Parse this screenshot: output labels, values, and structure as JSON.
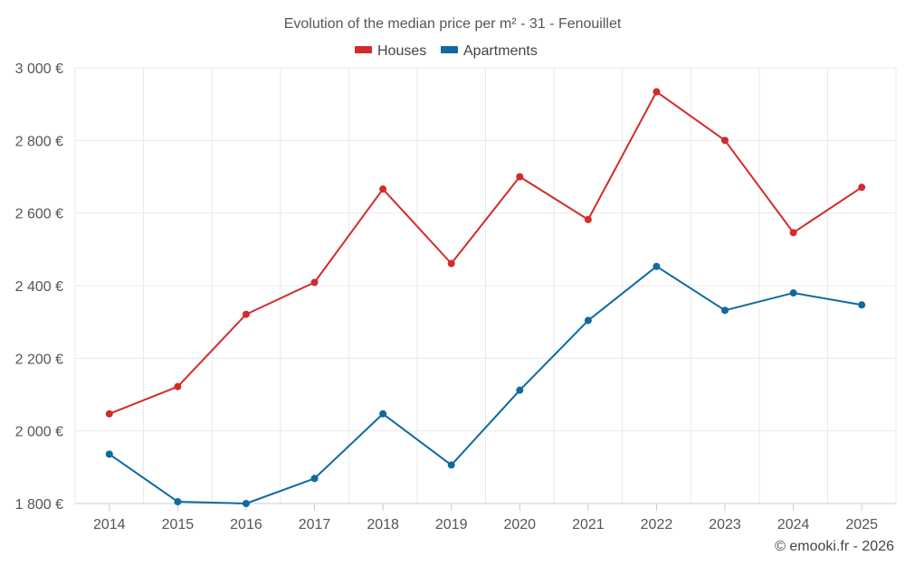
{
  "chart_data": {
    "type": "line",
    "title": "Evolution of the median price per m² - 31 - Fenouillet",
    "categories": [
      "2014",
      "2015",
      "2016",
      "2017",
      "2018",
      "2019",
      "2020",
      "2021",
      "2022",
      "2023",
      "2024",
      "2025"
    ],
    "series": [
      {
        "name": "Houses",
        "color": "#d42a2a",
        "values": [
          2047,
          2122,
          2321,
          2409,
          2666,
          2461,
          2700,
          2582,
          2934,
          2800,
          2546,
          2671
        ]
      },
      {
        "name": "Apartments",
        "color": "#0e6aa0",
        "values": [
          1936,
          1805,
          1800,
          1869,
          2047,
          1906,
          2112,
          2304,
          2453,
          2332,
          2380,
          2347
        ]
      }
    ],
    "ylim": [
      1800,
      3000
    ],
    "y_ticks": [
      {
        "value": 1800,
        "label": "1 800 €"
      },
      {
        "value": 2000,
        "label": "2 000 €"
      },
      {
        "value": 2200,
        "label": "2 200 €"
      },
      {
        "value": 2400,
        "label": "2 400 €"
      },
      {
        "value": 2600,
        "label": "2 600 €"
      },
      {
        "value": 2800,
        "label": "2 800 €"
      },
      {
        "value": 3000,
        "label": "3 000 €"
      }
    ],
    "grid": true,
    "legend_position": "top-center",
    "xlabel": "",
    "ylabel": "",
    "credit": "© emooki.fr - 2026"
  }
}
